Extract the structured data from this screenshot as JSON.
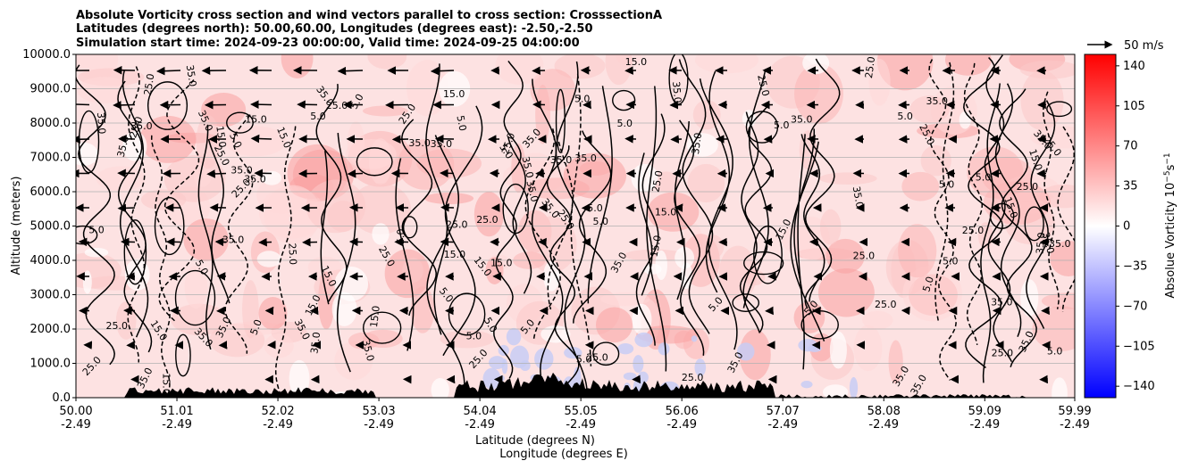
{
  "chart_data": {
    "type": "heatmap",
    "title_lines": [
      "Absolute Vorticity cross section and wind vectors parallel to cross section: CrosssectionA",
      "Latitudes (degrees north): 50.00,60.00, Longitudes (degrees east): -2.50,-2.50",
      "Simulation start time: 2024-09-23 00:00:00, Valid time: 2024-09-25 04:00:00"
    ],
    "xlabel_lat": "Latitude (degrees N)",
    "xlabel_lon": "Longitude (degrees E)",
    "ylabel": "Altitude (meters)",
    "x_ticks": [
      {
        "lat": "50.00",
        "lon": "-2.49"
      },
      {
        "lat": "51.01",
        "lon": "-2.49"
      },
      {
        "lat": "52.02",
        "lon": "-2.49"
      },
      {
        "lat": "53.03",
        "lon": "-2.49"
      },
      {
        "lat": "54.04",
        "lon": "-2.49"
      },
      {
        "lat": "55.05",
        "lon": "-2.49"
      },
      {
        "lat": "56.06",
        "lon": "-2.49"
      },
      {
        "lat": "57.07",
        "lon": "-2.49"
      },
      {
        "lat": "58.08",
        "lon": "-2.49"
      },
      {
        "lat": "59.09",
        "lon": "-2.49"
      },
      {
        "lat": "59.99",
        "lon": "-2.49"
      }
    ],
    "y_ticks": [
      "0.0",
      "1000.0",
      "2000.0",
      "3000.0",
      "4000.0",
      "5000.0",
      "6000.0",
      "7000.0",
      "8000.0",
      "9000.0",
      "10000.0"
    ],
    "xlim": [
      50.0,
      59.99
    ],
    "ylim": [
      0,
      10000
    ],
    "grid": "horizontal",
    "colorbar": {
      "label": "Absolue Vorticity 10",
      "label_sup": "−5",
      "label_unit": "s",
      "label_unit_sup": "−1",
      "ticks": [
        "140",
        "105",
        "70",
        "35",
        "0",
        "−35",
        "−70",
        "−105",
        "−140"
      ],
      "range": [
        -150,
        150
      ],
      "colormap": "bwr",
      "low_color": "#0000ff",
      "mid_color": "#ffffff",
      "high_color": "#ff0000"
    },
    "quiver_key": "50 m/s",
    "contour_labels": [
      "5.0",
      "15.0",
      "25.0",
      "35.0"
    ],
    "terrain_color": "#000000"
  }
}
